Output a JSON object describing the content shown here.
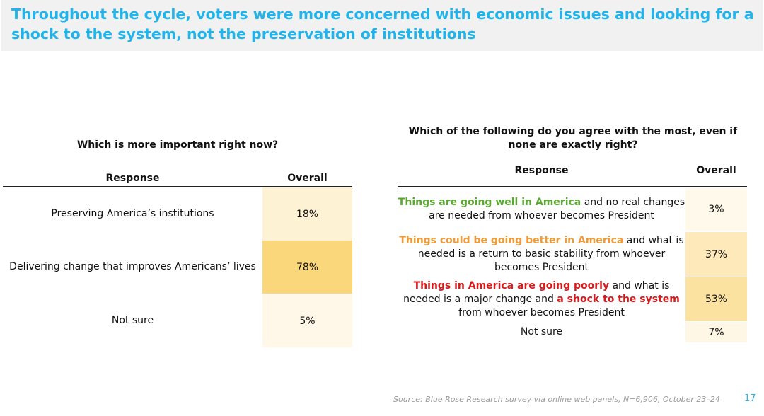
{
  "slide": {
    "title": "Throughout the cycle, voters were more concerned with economic issues and looking for a shock to the system, not the preservation of institutions",
    "source": "Source: Blue Rose Research survey via online web panels, N=6,906, October 23–24",
    "page_number": "17"
  },
  "left_table": {
    "question_pre": "Which is ",
    "question_underlined": "more important",
    "question_post": " right now?",
    "col_response": "Response",
    "col_overall": "Overall"
  },
  "right_table": {
    "question": "Which of the following do you agree with the most, even if none are exactly right?",
    "col_response": "Response",
    "col_overall": "Overall",
    "rows": [
      {
        "highlight": "Things are going well in America",
        "rest": " and no real changes are needed from whoever becomes President"
      },
      {
        "highlight": "Things could be going better in America",
        "rest": " and what is needed is a return to basic stability from whoever becomes President"
      },
      {
        "highlight": "Things in America are going poorly",
        "mid": " and what is needed is a major change and ",
        "highlight2": "a shock to the system",
        "rest": " from whoever becomes President"
      },
      {
        "plain": "Not sure"
      }
    ]
  },
  "chart_data": [
    {
      "type": "table",
      "title": "Which is more important right now?",
      "columns": [
        "Response",
        "Overall"
      ],
      "categories": [
        "Preserving America’s institutions",
        "Delivering change that improves Americans’ lives",
        "Not sure"
      ],
      "values": [
        "18%",
        "78%",
        "5%"
      ],
      "shading": "heat scale by value (light cream to gold)"
    },
    {
      "type": "table",
      "title": "Which of the following do you agree with the most, even if none are exactly right?",
      "columns": [
        "Response",
        "Overall"
      ],
      "categories": [
        "Things are going well in America and no real changes are needed from whoever becomes President",
        "Things could be going better in America and what is needed is a return to basic stability from whoever becomes President",
        "Things in America are going poorly and what is needed is a major change and a shock to the system from whoever becomes President",
        "Not sure"
      ],
      "values": [
        "3%",
        "37%",
        "53%",
        "7%"
      ],
      "shading": "heat scale by value (light cream to gold)"
    }
  ],
  "colors": {
    "title": "#22b3ea",
    "green": "#5aa832",
    "orange": "#ef9a37",
    "red": "#d7191c"
  }
}
